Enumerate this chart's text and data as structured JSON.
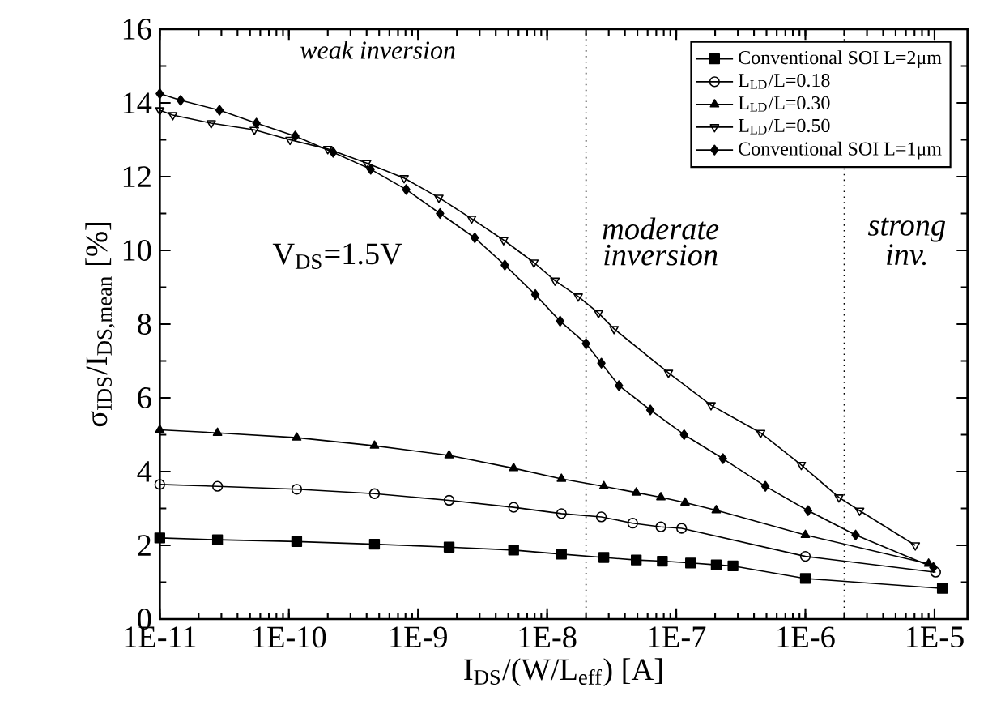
{
  "chart_data": {
    "type": "line",
    "xlabel": "I$_{DS}$/(W/L$_{eff}$) [A]",
    "ylabel": "σ$_{IDS}$/I$_{DS,mean}$ [%]",
    "log": "x",
    "xlim": [
      1e-11,
      1.8e-05
    ],
    "ylim": [
      0,
      16
    ],
    "xticks": [
      {
        "value": 1e-11,
        "label": "1E-11"
      },
      {
        "value": 1e-10,
        "label": "1E-10"
      },
      {
        "value": 1e-09,
        "label": "1E-9"
      },
      {
        "value": 1e-08,
        "label": "1E-8"
      },
      {
        "value": 1e-07,
        "label": "1E-7"
      },
      {
        "value": 1e-06,
        "label": "1E-6"
      },
      {
        "value": 1e-05,
        "label": "1E-5"
      }
    ],
    "yticks": [
      0,
      2,
      4,
      6,
      8,
      10,
      12,
      14,
      16
    ],
    "legend": "top right",
    "grid": false,
    "series": [
      {
        "name": "Conventional SOI L=2μm",
        "color": "#000000",
        "marker": "square",
        "x": [
          1e-11,
          2.8e-11,
          1.15e-10,
          4.6e-10,
          1.74e-09,
          5.5e-09,
          1.29e-08,
          2.75e-08,
          4.9e-08,
          7.8e-08,
          1.29e-07,
          2.04e-07,
          2.75e-07,
          1e-06,
          1.15e-05
        ],
        "values": [
          2.2,
          2.15,
          2.1,
          2.03,
          1.95,
          1.87,
          1.76,
          1.67,
          1.6,
          1.57,
          1.52,
          1.47,
          1.44,
          1.1,
          0.83
        ]
      },
      {
        "name": "L$_{LD}$/L=0.18",
        "color": "#000000",
        "marker": "circle-open",
        "x": [
          1e-11,
          2.8e-11,
          1.15e-10,
          4.6e-10,
          1.74e-09,
          5.5e-09,
          1.29e-08,
          2.63e-08,
          4.6e-08,
          7.6e-08,
          1.1e-07,
          1e-06,
          1.02e-05
        ],
        "values": [
          3.65,
          3.6,
          3.52,
          3.4,
          3.22,
          3.03,
          2.86,
          2.77,
          2.6,
          2.5,
          2.46,
          1.7,
          1.27
        ]
      },
      {
        "name": "L$_{LD}$/L=0.30",
        "color": "#000000",
        "marker": "triangle",
        "x": [
          1e-11,
          2.8e-11,
          1.15e-10,
          4.6e-10,
          1.74e-09,
          5.5e-09,
          1.29e-08,
          2.75e-08,
          4.9e-08,
          7.6e-08,
          1.17e-07,
          2.04e-07,
          1e-06,
          9e-06
        ],
        "values": [
          5.13,
          5.05,
          4.92,
          4.7,
          4.44,
          4.09,
          3.8,
          3.6,
          3.43,
          3.3,
          3.16,
          2.95,
          2.28,
          1.5
        ]
      },
      {
        "name": "L$_{LD}$/L=0.50",
        "color": "#000000",
        "marker": "triangle-down-open",
        "x": [
          1e-11,
          1.26e-11,
          2.5e-11,
          5.4e-11,
          1.02e-10,
          2e-10,
          4e-10,
          7.8e-10,
          1.45e-09,
          2.6e-09,
          4.6e-09,
          7.9e-09,
          1.15e-08,
          1.74e-08,
          2.5e-08,
          3.3e-08,
          8.7e-08,
          1.86e-07,
          4.5e-07,
          9.3e-07,
          1.82e-06,
          2.63e-06,
          7.1e-06
        ],
        "values": [
          13.8,
          13.67,
          13.45,
          13.27,
          13.0,
          12.75,
          12.37,
          11.96,
          11.43,
          10.86,
          10.28,
          9.67,
          9.18,
          8.75,
          8.3,
          7.87,
          6.68,
          5.8,
          5.05,
          4.18,
          3.3,
          2.94,
          2.0
        ]
      },
      {
        "name": "Conventional SOI L=1μm",
        "color": "#000000",
        "marker": "diamond",
        "x": [
          1e-11,
          1.45e-11,
          2.9e-11,
          5.6e-11,
          1.12e-10,
          2.2e-10,
          4.3e-10,
          8.1e-10,
          1.48e-09,
          2.75e-09,
          4.7e-09,
          8.1e-09,
          1.26e-08,
          2e-08,
          2.63e-08,
          3.6e-08,
          6.3e-08,
          1.15e-07,
          2.3e-07,
          4.9e-07,
          1.05e-06,
          2.45e-06,
          9.8e-06
        ],
        "values": [
          14.25,
          14.07,
          13.8,
          13.45,
          13.1,
          12.66,
          12.2,
          11.65,
          11.0,
          10.34,
          9.6,
          8.8,
          8.08,
          7.47,
          6.94,
          6.33,
          5.67,
          5.0,
          4.35,
          3.6,
          2.94,
          2.28,
          1.4
        ]
      }
    ],
    "ref_lines": [
      {
        "axis": "x",
        "value": 2e-08,
        "color": "#000000",
        "line_style": "dotted"
      },
      {
        "axis": "x",
        "value": 2e-06,
        "color": "#000000",
        "line_style": "dotted"
      }
    ],
    "annotations": [
      "weak inversion",
      "V$_{DS}$=1.5V",
      "moderate inversion",
      "strong inv."
    ]
  }
}
